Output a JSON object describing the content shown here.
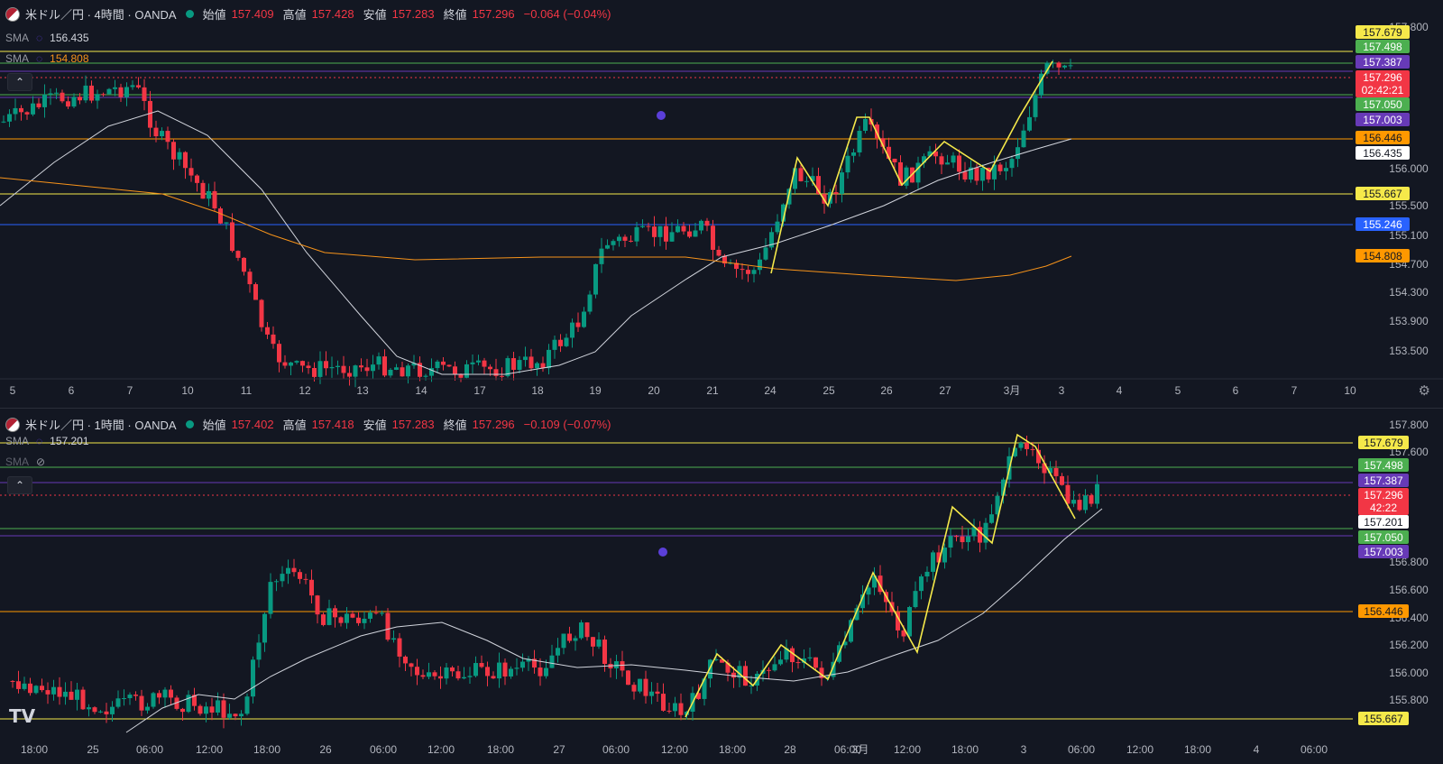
{
  "top": {
    "title": "米ドル／円 · 4時間 · OANDA",
    "open_label": "始値",
    "open": "157.409",
    "high_label": "高値",
    "high": "157.428",
    "low_label": "安値",
    "low": "157.283",
    "close_label": "終値",
    "close": "157.296",
    "change": "−0.064 (−0.04%)",
    "sma1": {
      "name": "SMA",
      "value": "156.435",
      "color": "#d1d4dc"
    },
    "sma2": {
      "name": "SMA",
      "value": "154.808",
      "color": "#f7931a"
    },
    "countdown": "02:42:21",
    "x_ticks": [
      "5",
      "6",
      "7",
      "10",
      "11",
      "12",
      "13",
      "14",
      "17",
      "18",
      "19",
      "20",
      "21",
      "24",
      "25",
      "26",
      "27",
      "3月",
      "3",
      "4",
      "5",
      "6",
      "7",
      "10"
    ],
    "y_ticks": [
      "157.800",
      "156.000",
      "155.500",
      "155.100",
      "154.700",
      "154.300",
      "153.900",
      "153.500"
    ],
    "price_labels": [
      {
        "text": "157.679",
        "bg": "#f5e94a",
        "fg": "#131722"
      },
      {
        "text": "157.498",
        "bg": "#4caf50",
        "fg": "#ffffff"
      },
      {
        "text": "157.387",
        "bg": "#673ab7",
        "fg": "#ffffff"
      },
      {
        "text": "157.296",
        "bg": "#f23645",
        "fg": "#ffffff"
      },
      {
        "text": "157.050",
        "bg": "#4caf50",
        "fg": "#ffffff"
      },
      {
        "text": "157.003",
        "bg": "#673ab7",
        "fg": "#ffffff"
      },
      {
        "text": "156.446",
        "bg": "#ff9800",
        "fg": "#131722"
      },
      {
        "text": "156.435",
        "bg": "#ffffff",
        "fg": "#131722"
      },
      {
        "text": "155.667",
        "bg": "#f5e94a",
        "fg": "#131722"
      },
      {
        "text": "155.246",
        "bg": "#2962ff",
        "fg": "#ffffff"
      },
      {
        "text": "154.808",
        "bg": "#ff9800",
        "fg": "#131722"
      }
    ]
  },
  "bottom": {
    "title": "米ドル／円 · 1時間 · OANDA",
    "open_label": "始値",
    "open": "157.402",
    "high_label": "高値",
    "high": "157.418",
    "low_label": "安値",
    "low": "157.283",
    "close_label": "終値",
    "close": "157.296",
    "change": "−0.109 (−0.07%)",
    "sma1": {
      "name": "SMA",
      "value": "157.201",
      "color": "#d1d4dc"
    },
    "sma2": {
      "name": "SMA",
      "value": "",
      "color": "#9598a1"
    },
    "countdown": "42:22",
    "x_ticks": [
      "18:00",
      "25",
      "06:00",
      "12:00",
      "18:00",
      "26",
      "06:00",
      "12:00",
      "18:00",
      "27",
      "06:00",
      "12:00",
      "18:00",
      "28",
      "06:00",
      "3月",
      "12:00",
      "18:00",
      "3",
      "06:00",
      "12:00",
      "18:00",
      "4",
      "06:00"
    ],
    "y_ticks": [
      "157.800",
      "157.600",
      "156.800",
      "156.600",
      "156.400",
      "156.200",
      "156.000",
      "155.800"
    ],
    "price_labels": [
      {
        "text": "157.679",
        "bg": "#f5e94a",
        "fg": "#131722"
      },
      {
        "text": "157.498",
        "bg": "#4caf50",
        "fg": "#ffffff"
      },
      {
        "text": "157.387",
        "bg": "#673ab7",
        "fg": "#ffffff"
      },
      {
        "text": "157.296",
        "bg": "#f23645",
        "fg": "#ffffff"
      },
      {
        "text": "157.201",
        "bg": "#ffffff",
        "fg": "#131722"
      },
      {
        "text": "157.050",
        "bg": "#4caf50",
        "fg": "#ffffff"
      },
      {
        "text": "157.003",
        "bg": "#673ab7",
        "fg": "#ffffff"
      },
      {
        "text": "156.446",
        "bg": "#ff9800",
        "fg": "#131722"
      },
      {
        "text": "155.667",
        "bg": "#f5e94a",
        "fg": "#131722"
      }
    ]
  },
  "icons": {
    "collapse": "chevron-up-icon",
    "settings": "gear-icon",
    "logo": "tradingview-logo",
    "alert": "alarm-clock-icon"
  },
  "colors": {
    "up": "#089981",
    "down": "#f23645",
    "bg": "#131722",
    "zigzag": "#f5e94a"
  }
}
